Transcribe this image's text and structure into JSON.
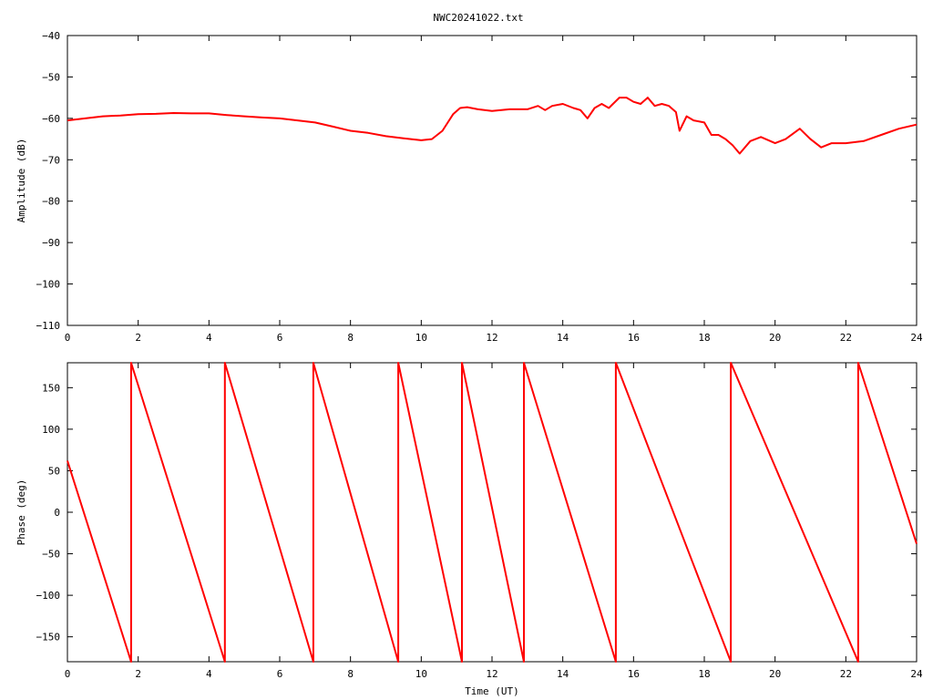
{
  "title": "NWC20241022.txt",
  "colors": {
    "trace": "#ff0000",
    "axis": "#000000",
    "background": "#ffffff"
  },
  "chart_data": [
    {
      "type": "line",
      "title": "NWC20241022.txt",
      "xlabel": "",
      "ylabel": "Amplitude (dB)",
      "xlim": [
        0,
        24
      ],
      "ylim": [
        -110,
        -40
      ],
      "grid": false,
      "xticks": [
        0,
        2,
        4,
        6,
        8,
        10,
        12,
        14,
        16,
        18,
        20,
        22,
        24
      ],
      "yticks": [
        -110,
        -100,
        -90,
        -80,
        -70,
        -60,
        -50,
        -40
      ],
      "xtick_labels": [
        "0",
        "2",
        "4",
        "6",
        "8",
        "10",
        "12",
        "14",
        "16",
        "18",
        "20",
        "22",
        "24"
      ],
      "ytick_labels": [
        "−110",
        "−100",
        "−90",
        "−80",
        "−70",
        "−60",
        "−50",
        "−40"
      ],
      "series": [
        {
          "x": [
            0,
            0.5,
            1,
            1.5,
            2,
            2.5,
            3,
            3.5,
            4,
            4.5,
            5,
            5.5,
            6,
            6.5,
            7,
            7.5,
            8,
            8.5,
            9,
            9.5,
            10,
            10.3,
            10.6,
            10.9,
            11.1,
            11.3,
            11.6,
            12,
            12.5,
            13,
            13.3,
            13.5,
            13.7,
            14,
            14.3,
            14.5,
            14.7,
            14.9,
            15.1,
            15.3,
            15.6,
            15.8,
            16,
            16.2,
            16.4,
            16.6,
            16.8,
            17,
            17.2,
            17.3,
            17.5,
            17.7,
            18,
            18.2,
            18.4,
            18.6,
            18.8,
            19,
            19.3,
            19.6,
            20,
            20.3,
            20.7,
            21,
            21.3,
            21.6,
            22,
            22.5,
            23,
            23.5,
            24
          ],
          "y": [
            -60.5,
            -60,
            -59.5,
            -59.3,
            -59,
            -58.9,
            -58.7,
            -58.8,
            -58.8,
            -59.2,
            -59.5,
            -59.8,
            -60,
            -60.5,
            -61,
            -62,
            -63,
            -63.5,
            -64.3,
            -64.8,
            -65.3,
            -65,
            -63,
            -59,
            -57.5,
            -57.3,
            -57.8,
            -58.2,
            -57.8,
            -57.8,
            -57,
            -58,
            -57,
            -56.5,
            -57.5,
            -58,
            -60,
            -57.5,
            -56.5,
            -57.5,
            -55,
            -55,
            -56,
            -56.5,
            -55,
            -57,
            -56.5,
            -57,
            -58.5,
            -63,
            -59.5,
            -60.5,
            -61,
            -64,
            -64,
            -65,
            -66.5,
            -68.5,
            -65.5,
            -64.5,
            -66,
            -65,
            -62.5,
            -65,
            -67,
            -66,
            -66,
            -65.5,
            -64,
            -62.5,
            -61.5
          ]
        }
      ]
    },
    {
      "type": "line",
      "title": "",
      "xlabel": "Time (UT)",
      "ylabel": "Phase (deg)",
      "xlim": [
        0,
        24
      ],
      "ylim": [
        -180,
        180
      ],
      "grid": false,
      "xticks": [
        0,
        2,
        4,
        6,
        8,
        10,
        12,
        14,
        16,
        18,
        20,
        22,
        24
      ],
      "yticks": [
        -150,
        -100,
        -50,
        0,
        50,
        100,
        150
      ],
      "xtick_labels": [
        "0",
        "2",
        "4",
        "6",
        "8",
        "10",
        "12",
        "14",
        "16",
        "18",
        "20",
        "22",
        "24"
      ],
      "ytick_labels": [
        "−150",
        "−100",
        "−50",
        "0",
        "50",
        "100",
        "150"
      ],
      "series": [
        {
          "x": [
            0,
            1.8,
            1.8,
            4.45,
            4.45,
            6.95,
            6.95,
            9.35,
            9.35,
            11.15,
            11.15,
            12.9,
            12.9,
            15.5,
            15.5,
            18.75,
            18.75,
            22.35,
            22.35,
            24
          ],
          "y": [
            62,
            -180,
            180,
            -180,
            180,
            -180,
            180,
            -180,
            180,
            -180,
            180,
            -180,
            180,
            -180,
            180,
            -180,
            180,
            -180,
            180,
            -38
          ]
        }
      ]
    }
  ]
}
